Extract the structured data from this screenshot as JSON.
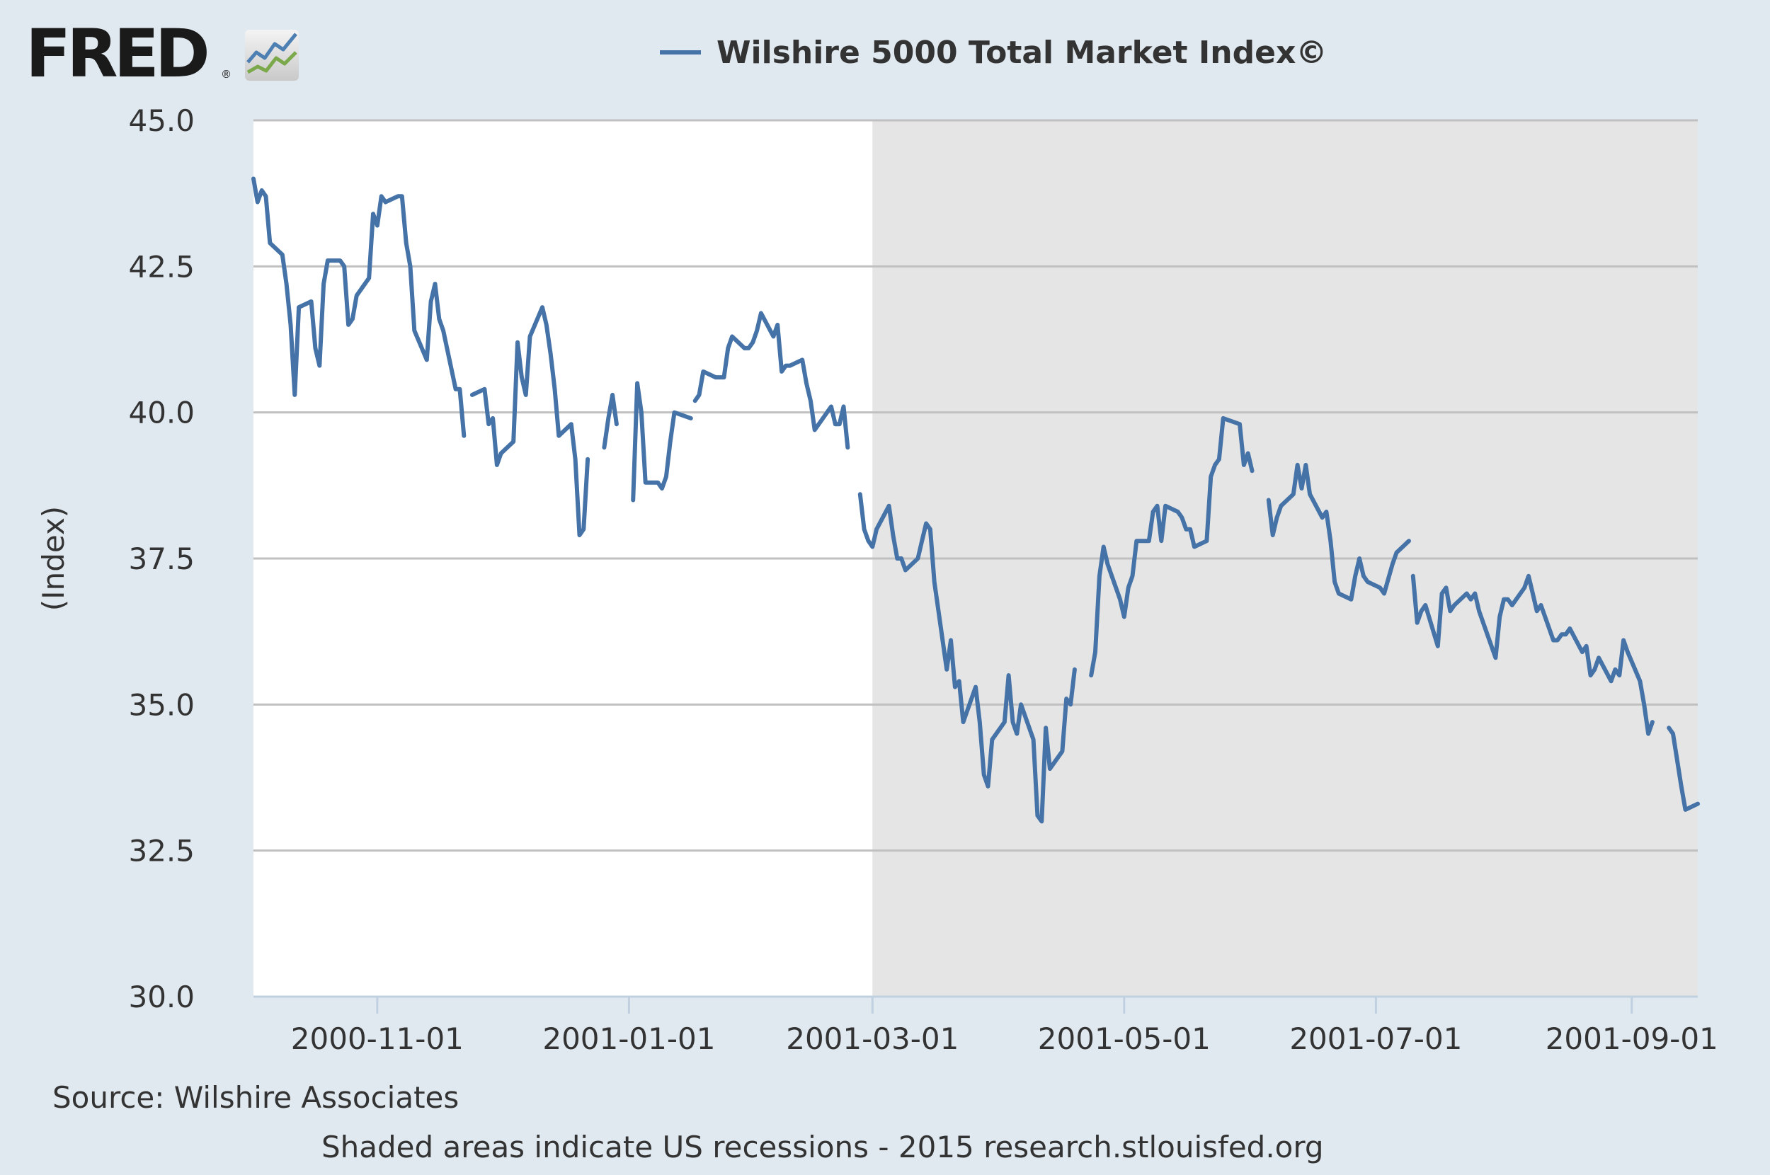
{
  "logo": {
    "text": "FRED",
    "registered": "®",
    "icon": "line-chart-icon"
  },
  "colors": {
    "series": "#4572a7",
    "recession": "#e5e5e5",
    "plot_bg": "#ffffff",
    "page_bg": "#e1e9f0",
    "grid": "#c0c0c0"
  },
  "source": "Source: Wilshire Associates",
  "footer": "Shaded areas indicate US recessions - 2015 research.stlouisfed.org",
  "chart_data": {
    "type": "line",
    "title": "Wilshire 5000 Total Market Index©",
    "xlabel": "",
    "ylabel": "(Index)",
    "ylim": [
      30.0,
      45.0
    ],
    "yticks": [
      "30.0",
      "32.5",
      "35.0",
      "37.5",
      "40.0",
      "42.5",
      "45.0"
    ],
    "xlim": [
      "2000-10-02",
      "2001-09-17"
    ],
    "xticks": [
      "2000-11-01",
      "2001-01-01",
      "2001-03-01",
      "2001-05-01",
      "2001-07-01",
      "2001-09-01"
    ],
    "grid": true,
    "legend": "top-center",
    "recession_shading": {
      "start": "2001-03-01",
      "end": "2001-09-17"
    },
    "series": [
      {
        "name": "Wilshire 5000 Total Market Index©",
        "segments": [
          [
            [
              "2000-10-02",
              44.0
            ],
            [
              "2000-10-03",
              43.6
            ],
            [
              "2000-10-04",
              43.8
            ],
            [
              "2000-10-05",
              43.7
            ],
            [
              "2000-10-06",
              42.9
            ],
            [
              "2000-10-09",
              42.7
            ],
            [
              "2000-10-10",
              42.2
            ],
            [
              "2000-10-11",
              41.5
            ],
            [
              "2000-10-12",
              40.3
            ],
            [
              "2000-10-13",
              41.8
            ],
            [
              "2000-10-16",
              41.9
            ],
            [
              "2000-10-17",
              41.1
            ],
            [
              "2000-10-18",
              40.8
            ],
            [
              "2000-10-19",
              42.2
            ],
            [
              "2000-10-20",
              42.6
            ],
            [
              "2000-10-23",
              42.6
            ],
            [
              "2000-10-24",
              42.5
            ],
            [
              "2000-10-25",
              41.5
            ],
            [
              "2000-10-26",
              41.6
            ],
            [
              "2000-10-27",
              42.0
            ],
            [
              "2000-10-30",
              42.3
            ],
            [
              "2000-10-31",
              43.4
            ],
            [
              "2000-11-01",
              43.2
            ],
            [
              "2000-11-02",
              43.7
            ],
            [
              "2000-11-03",
              43.6
            ],
            [
              "2000-11-06",
              43.7
            ],
            [
              "2000-11-07",
              43.7
            ],
            [
              "2000-11-08",
              42.9
            ],
            [
              "2000-11-09",
              42.5
            ],
            [
              "2000-11-10",
              41.4
            ],
            [
              "2000-11-13",
              40.9
            ],
            [
              "2000-11-14",
              41.9
            ],
            [
              "2000-11-15",
              42.2
            ],
            [
              "2000-11-16",
              41.6
            ],
            [
              "2000-11-17",
              41.4
            ],
            [
              "2000-11-20",
              40.4
            ],
            [
              "2000-11-21",
              40.4
            ],
            [
              "2000-11-22",
              39.6
            ]
          ],
          [
            [
              "2000-11-24",
              40.3
            ],
            [
              "2000-11-27",
              40.4
            ],
            [
              "2000-11-28",
              39.8
            ],
            [
              "2000-11-29",
              39.9
            ],
            [
              "2000-11-30",
              39.1
            ],
            [
              "2000-12-01",
              39.3
            ],
            [
              "2000-12-04",
              39.5
            ],
            [
              "2000-12-05",
              41.2
            ],
            [
              "2000-12-06",
              40.6
            ],
            [
              "2000-12-07",
              40.3
            ],
            [
              "2000-12-08",
              41.3
            ],
            [
              "2000-12-11",
              41.8
            ],
            [
              "2000-12-12",
              41.5
            ],
            [
              "2000-12-13",
              41.0
            ],
            [
              "2000-12-14",
              40.4
            ],
            [
              "2000-12-15",
              39.6
            ],
            [
              "2000-12-18",
              39.8
            ],
            [
              "2000-12-19",
              39.2
            ],
            [
              "2000-12-20",
              37.9
            ],
            [
              "2000-12-21",
              38.0
            ],
            [
              "2000-12-22",
              39.2
            ]
          ],
          [
            [
              "2000-12-26",
              39.4
            ],
            [
              "2000-12-27",
              39.9
            ],
            [
              "2000-12-28",
              40.3
            ],
            [
              "2000-12-29",
              39.8
            ]
          ],
          [
            [
              "2001-01-02",
              38.5
            ],
            [
              "2001-01-03",
              40.5
            ],
            [
              "2001-01-04",
              40.0
            ],
            [
              "2001-01-05",
              38.8
            ],
            [
              "2001-01-08",
              38.8
            ],
            [
              "2001-01-09",
              38.7
            ],
            [
              "2001-01-10",
              38.9
            ],
            [
              "2001-01-11",
              39.5
            ],
            [
              "2001-01-12",
              40.0
            ],
            [
              "2001-01-16",
              39.9
            ]
          ],
          [
            [
              "2001-01-17",
              40.2
            ],
            [
              "2001-01-18",
              40.3
            ],
            [
              "2001-01-19",
              40.7
            ],
            [
              "2001-01-22",
              40.6
            ],
            [
              "2001-01-23",
              40.6
            ],
            [
              "2001-01-24",
              40.6
            ],
            [
              "2001-01-25",
              41.1
            ],
            [
              "2001-01-26",
              41.3
            ],
            [
              "2001-01-29",
              41.1
            ],
            [
              "2001-01-30",
              41.1
            ],
            [
              "2001-01-31",
              41.2
            ],
            [
              "2001-02-01",
              41.4
            ],
            [
              "2001-02-02",
              41.7
            ],
            [
              "2001-02-05",
              41.3
            ],
            [
              "2001-02-06",
              41.5
            ],
            [
              "2001-02-07",
              40.7
            ],
            [
              "2001-02-08",
              40.8
            ],
            [
              "2001-02-09",
              40.8
            ],
            [
              "2001-02-12",
              40.9
            ],
            [
              "2001-02-13",
              40.5
            ],
            [
              "2001-02-14",
              40.2
            ],
            [
              "2001-02-15",
              39.7
            ],
            [
              "2001-02-16",
              39.8
            ],
            [
              "2001-02-19",
              40.1
            ],
            [
              "2001-02-20",
              39.8
            ],
            [
              "2001-02-21",
              39.8
            ],
            [
              "2001-02-22",
              40.1
            ],
            [
              "2001-02-23",
              39.4
            ]
          ],
          [
            [
              "2001-02-26",
              38.6
            ],
            [
              "2001-02-27",
              38.0
            ],
            [
              "2001-02-28",
              37.8
            ],
            [
              "2001-03-01",
              37.7
            ],
            [
              "2001-03-02",
              38.0
            ],
            [
              "2001-03-05",
              38.4
            ],
            [
              "2001-03-06",
              37.9
            ],
            [
              "2001-03-07",
              37.5
            ],
            [
              "2001-03-08",
              37.5
            ],
            [
              "2001-03-09",
              37.3
            ],
            [
              "2001-03-12",
              37.5
            ],
            [
              "2001-03-13",
              37.8
            ],
            [
              "2001-03-14",
              38.1
            ],
            [
              "2001-03-15",
              38.0
            ],
            [
              "2001-03-16",
              37.1
            ],
            [
              "2001-03-19",
              35.6
            ],
            [
              "2001-03-20",
              36.1
            ],
            [
              "2001-03-21",
              35.3
            ],
            [
              "2001-03-22",
              35.4
            ],
            [
              "2001-03-23",
              34.7
            ],
            [
              "2001-03-26",
              35.3
            ],
            [
              "2001-03-27",
              34.7
            ],
            [
              "2001-03-28",
              33.8
            ],
            [
              "2001-03-29",
              33.6
            ],
            [
              "2001-03-30",
              34.4
            ],
            [
              "2001-04-02",
              34.7
            ],
            [
              "2001-04-03",
              35.5
            ],
            [
              "2001-04-04",
              34.7
            ],
            [
              "2001-04-05",
              34.5
            ],
            [
              "2001-04-06",
              35.0
            ],
            [
              "2001-04-09",
              34.4
            ],
            [
              "2001-04-10",
              33.1
            ],
            [
              "2001-04-11",
              33.0
            ],
            [
              "2001-04-12",
              34.6
            ],
            [
              "2001-04-13",
              33.9
            ],
            [
              "2001-04-16",
              34.2
            ],
            [
              "2001-04-17",
              35.1
            ],
            [
              "2001-04-18",
              35.0
            ],
            [
              "2001-04-19",
              35.6
            ]
          ],
          [
            [
              "2001-04-23",
              35.5
            ],
            [
              "2001-04-24",
              35.9
            ],
            [
              "2001-04-25",
              37.2
            ],
            [
              "2001-04-26",
              37.7
            ],
            [
              "2001-04-27",
              37.4
            ],
            [
              "2001-04-30",
              36.8
            ],
            [
              "2001-05-01",
              36.5
            ],
            [
              "2001-05-02",
              37.0
            ],
            [
              "2001-05-03",
              37.2
            ],
            [
              "2001-05-04",
              37.8
            ],
            [
              "2001-05-07",
              37.8
            ],
            [
              "2001-05-08",
              38.3
            ],
            [
              "2001-05-09",
              38.4
            ],
            [
              "2001-05-10",
              37.8
            ],
            [
              "2001-05-11",
              38.4
            ],
            [
              "2001-05-14",
              38.3
            ],
            [
              "2001-05-15",
              38.2
            ],
            [
              "2001-05-16",
              38.0
            ],
            [
              "2001-05-17",
              38.0
            ],
            [
              "2001-05-18",
              37.7
            ],
            [
              "2001-05-21",
              37.8
            ],
            [
              "2001-05-22",
              38.9
            ],
            [
              "2001-05-23",
              39.1
            ],
            [
              "2001-05-24",
              39.2
            ],
            [
              "2001-05-25",
              39.9
            ],
            [
              "2001-05-29",
              39.8
            ],
            [
              "2001-05-30",
              39.1
            ],
            [
              "2001-05-31",
              39.3
            ],
            [
              "2001-06-01",
              39.0
            ]
          ],
          [
            [
              "2001-06-05",
              38.5
            ],
            [
              "2001-06-06",
              37.9
            ],
            [
              "2001-06-07",
              38.2
            ],
            [
              "2001-06-08",
              38.4
            ],
            [
              "2001-06-11",
              38.6
            ],
            [
              "2001-06-12",
              39.1
            ],
            [
              "2001-06-13",
              38.7
            ],
            [
              "2001-06-14",
              39.1
            ],
            [
              "2001-06-15",
              38.6
            ],
            [
              "2001-06-18",
              38.2
            ],
            [
              "2001-06-19",
              38.3
            ],
            [
              "2001-06-20",
              37.8
            ],
            [
              "2001-06-21",
              37.1
            ],
            [
              "2001-06-22",
              36.9
            ],
            [
              "2001-06-25",
              36.8
            ],
            [
              "2001-06-26",
              37.2
            ],
            [
              "2001-06-27",
              37.5
            ],
            [
              "2001-06-28",
              37.2
            ],
            [
              "2001-06-29",
              37.1
            ],
            [
              "2001-07-02",
              37.0
            ],
            [
              "2001-07-03",
              36.9
            ],
            [
              "2001-07-05",
              37.4
            ],
            [
              "2001-07-06",
              37.6
            ],
            [
              "2001-07-09",
              37.8
            ]
          ],
          [
            [
              "2001-07-10",
              37.2
            ],
            [
              "2001-07-11",
              36.4
            ],
            [
              "2001-07-12",
              36.6
            ],
            [
              "2001-07-13",
              36.7
            ],
            [
              "2001-07-16",
              36.0
            ],
            [
              "2001-07-17",
              36.9
            ],
            [
              "2001-07-18",
              37.0
            ],
            [
              "2001-07-19",
              36.6
            ],
            [
              "2001-07-20",
              36.7
            ],
            [
              "2001-07-23",
              36.9
            ],
            [
              "2001-07-24",
              36.8
            ],
            [
              "2001-07-25",
              36.9
            ],
            [
              "2001-07-26",
              36.6
            ],
            [
              "2001-07-27",
              36.4
            ],
            [
              "2001-07-30",
              35.8
            ],
            [
              "2001-07-31",
              36.5
            ],
            [
              "2001-08-01",
              36.8
            ],
            [
              "2001-08-02",
              36.8
            ],
            [
              "2001-08-03",
              36.7
            ],
            [
              "2001-08-06",
              37.0
            ],
            [
              "2001-08-07",
              37.2
            ],
            [
              "2001-08-08",
              36.9
            ],
            [
              "2001-08-09",
              36.6
            ],
            [
              "2001-08-10",
              36.7
            ],
            [
              "2001-08-13",
              36.1
            ],
            [
              "2001-08-14",
              36.1
            ],
            [
              "2001-08-15",
              36.2
            ],
            [
              "2001-08-16",
              36.2
            ],
            [
              "2001-08-17",
              36.3
            ],
            [
              "2001-08-20",
              35.9
            ],
            [
              "2001-08-21",
              36.0
            ],
            [
              "2001-08-22",
              35.5
            ],
            [
              "2001-08-23",
              35.6
            ],
            [
              "2001-08-24",
              35.8
            ],
            [
              "2001-08-27",
              35.4
            ],
            [
              "2001-08-28",
              35.6
            ],
            [
              "2001-08-29",
              35.5
            ],
            [
              "2001-08-30",
              36.1
            ],
            [
              "2001-08-31",
              35.9
            ],
            [
              "2001-09-03",
              35.4
            ],
            [
              "2001-09-04",
              35.0
            ],
            [
              "2001-09-05",
              34.5
            ],
            [
              "2001-09-06",
              34.7
            ]
          ],
          [
            [
              "2001-09-10",
              34.6
            ],
            [
              "2001-09-11",
              34.5
            ],
            [
              "2001-09-13",
              33.6
            ],
            [
              "2001-09-14",
              33.2
            ],
            [
              "2001-09-17",
              33.3
            ]
          ]
        ]
      }
    ]
  }
}
